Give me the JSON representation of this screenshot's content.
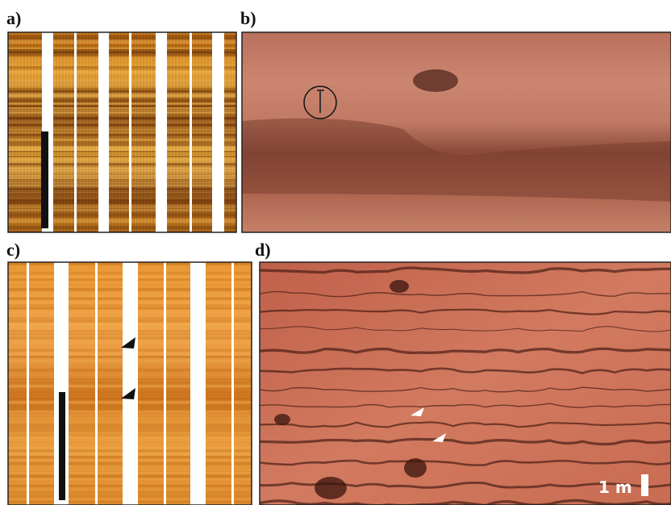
{
  "panels": [
    {
      "label": "a)"
    },
    {
      "label": "b)"
    },
    {
      "label": "c)"
    },
    {
      "label": "d)"
    }
  ],
  "scale_bar": "1 m"
}
